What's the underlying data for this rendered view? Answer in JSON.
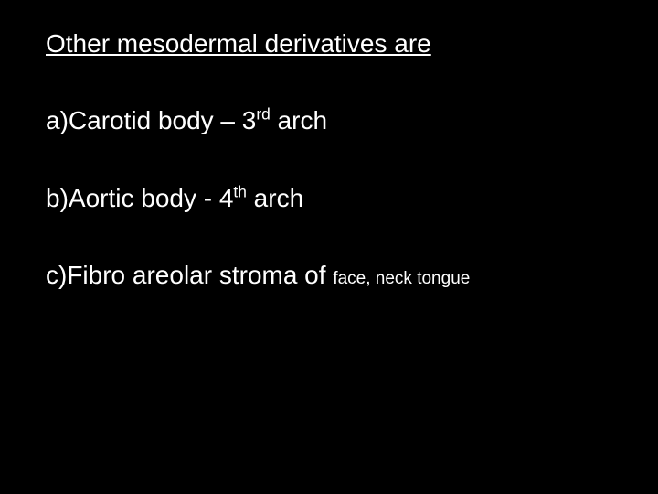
{
  "slide": {
    "background_color": "#000000",
    "text_color": "#ffffff",
    "font_family": "Arial",
    "title": {
      "text": "Other mesodermal derivatives  are",
      "fontsize": 28,
      "underline": true
    },
    "items": [
      {
        "prefix": "a)Carotid body – 3",
        "super": "rd",
        "suffix": " arch",
        "tail": "",
        "fontsize": 28
      },
      {
        "prefix": "b)Aortic body - 4",
        "super": "th",
        "suffix": " arch",
        "tail": "",
        "fontsize": 28
      },
      {
        "prefix": "c)Fibro areolar stroma of ",
        "super": "",
        "suffix": "",
        "tail": "face, neck tongue",
        "fontsize": 28,
        "tail_fontsize": 19
      }
    ]
  }
}
